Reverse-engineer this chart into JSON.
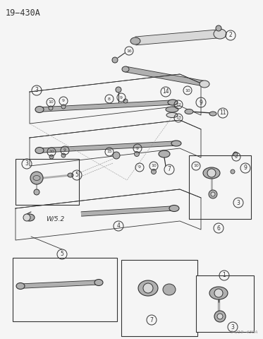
{
  "title": "19−430A",
  "watermark": "94/19  430A",
  "bg_color": "#f5f5f5",
  "line_color": "#333333",
  "gray_fill": "#b0b0b0",
  "light_fill": "#d8d8d8",
  "fig_width": 3.73,
  "fig_height": 4.8,
  "dpi": 100
}
